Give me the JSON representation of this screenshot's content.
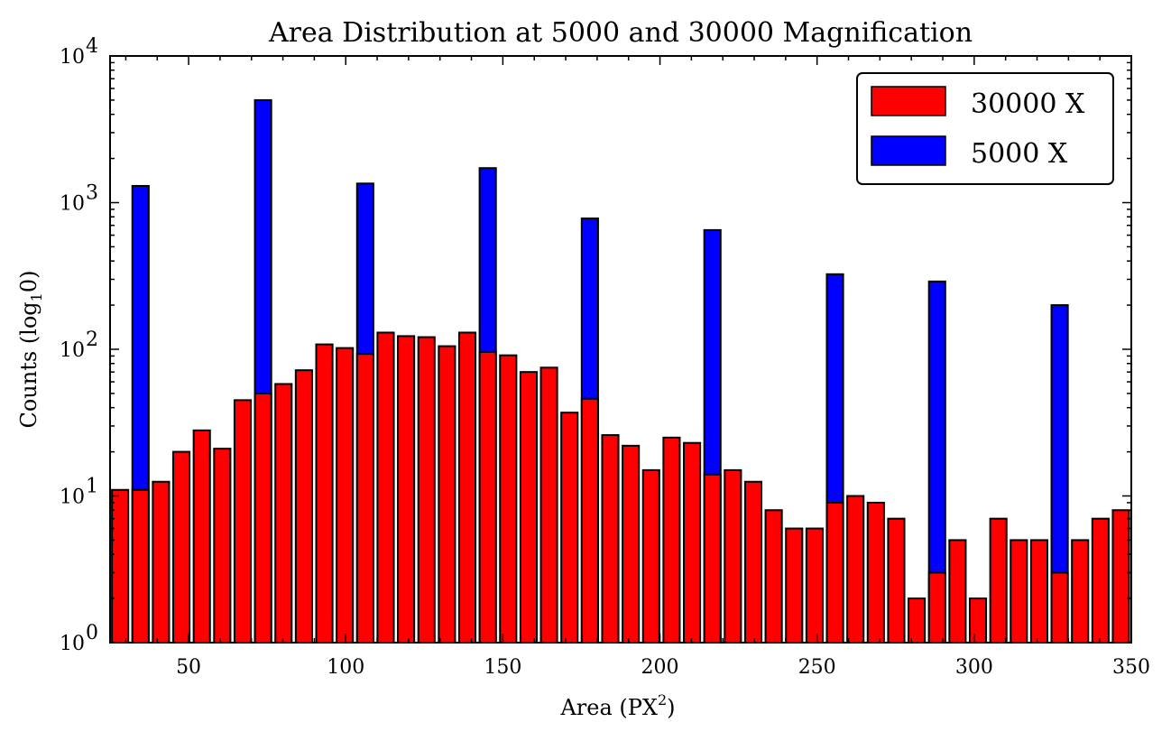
{
  "chart_data": {
    "type": "bar",
    "title": "Area Distribution at 5000 and 30000 Magnification",
    "xlabel_main": "Area (PX",
    "xlabel_sup": "2",
    "xlabel_end": ")",
    "ylabel_main": "Counts (log",
    "ylabel_sub": "1",
    "ylabel_end": "0)",
    "xlim": [
      25,
      350
    ],
    "ylim": [
      1,
      10000
    ],
    "yscale": "log",
    "x_ticks": [
      "50",
      "100",
      "150",
      "200",
      "250",
      "300",
      "350"
    ],
    "y_ticks": [
      {
        "base": "10",
        "exp": "0"
      },
      {
        "base": "10",
        "exp": "1"
      },
      {
        "base": "10",
        "exp": "2"
      },
      {
        "base": "10",
        "exp": "3"
      },
      {
        "base": "10",
        "exp": "4"
      }
    ],
    "legend_position": "top-right",
    "grid": false,
    "series": [
      {
        "name": "30000 X",
        "color": "#ff0000",
        "bar_width": 5.2,
        "x": [
          25.6,
          32.1,
          38.6,
          45.1,
          51.6,
          58.1,
          64.6,
          71.1,
          77.6,
          84.1,
          90.6,
          97.1,
          103.6,
          110.1,
          116.6,
          123.1,
          129.6,
          136.1,
          142.6,
          149.1,
          155.6,
          162.1,
          168.6,
          175.1,
          181.6,
          188.1,
          194.6,
          201.1,
          207.6,
          214.1,
          220.6,
          227.1,
          233.6,
          240.1,
          246.6,
          253.1,
          259.6,
          266.1,
          272.6,
          279.1,
          285.6,
          292.1,
          298.6,
          305.1,
          311.6,
          318.1,
          324.6,
          331.1,
          337.6,
          344.1
        ],
        "values": [
          11,
          11,
          12.5,
          20,
          28,
          21,
          45,
          50,
          58,
          72,
          108,
          102,
          93,
          130,
          123,
          121,
          105,
          130,
          96,
          91,
          70,
          75,
          37,
          46,
          26,
          22,
          15,
          25,
          23,
          14,
          15,
          12.5,
          8,
          6,
          6,
          9,
          10,
          9,
          7,
          2,
          3,
          5,
          2,
          7,
          5,
          5,
          3,
          5,
          7,
          8
        ]
      },
      {
        "name": "5000 X",
        "color": "#0000ff",
        "bar_width": 5.2,
        "x": [
          32.1,
          71.1,
          103.6,
          142.6,
          175.1,
          214.1,
          253.1,
          285.6,
          324.6
        ],
        "values": [
          1300,
          5000,
          1350,
          1720,
          780,
          650,
          325,
          290,
          200
        ]
      }
    ]
  }
}
